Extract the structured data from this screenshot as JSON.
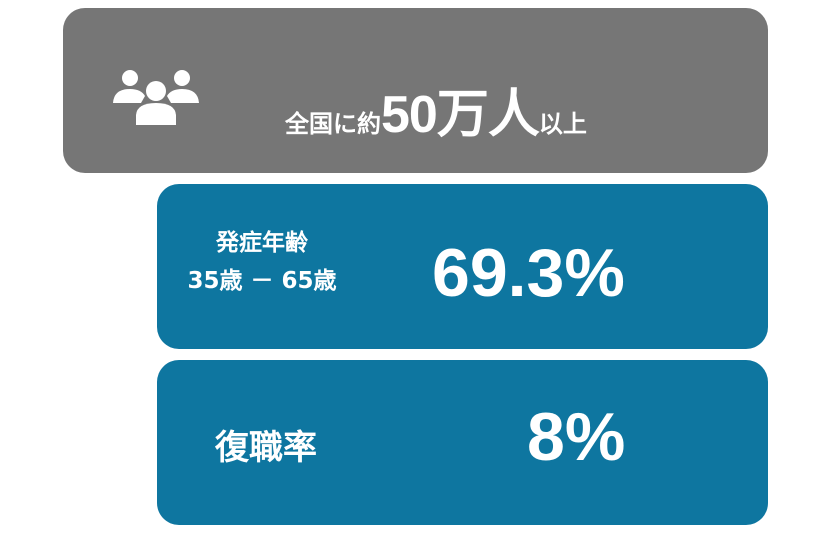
{
  "cards": [
    {
      "icon": "people-group-icon",
      "prefix": "全国に約",
      "value": "50万人",
      "suffix": "以上",
      "color": "#767676"
    },
    {
      "label_line1": "発症年齢",
      "label_line2": "35歳 － 65歳",
      "value": "69.3%",
      "color": "#0e76a0"
    },
    {
      "label": "復職率",
      "value": "8%",
      "color": "#0e76a0"
    }
  ]
}
